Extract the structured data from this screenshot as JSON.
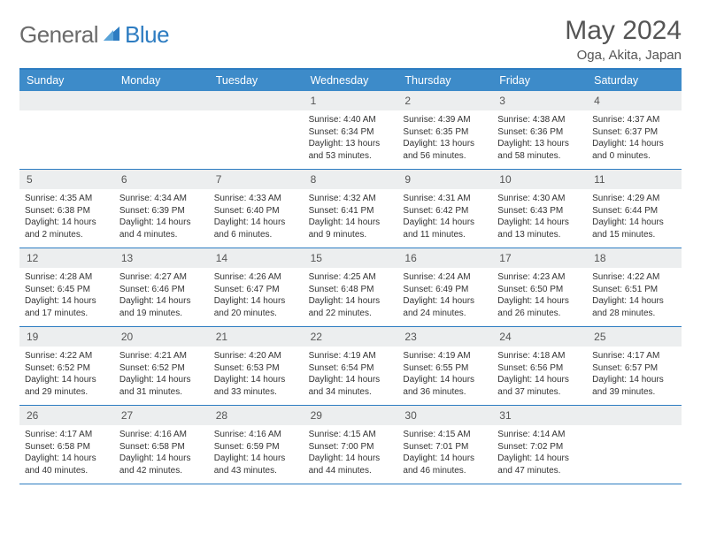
{
  "logo": {
    "part1": "General",
    "part2": "Blue"
  },
  "title": "May 2024",
  "location": "Oga, Akita, Japan",
  "colors": {
    "header_bg": "#3d8bc9",
    "border": "#2d7cc1",
    "daynum_bg": "#eceeef",
    "text": "#333333"
  },
  "day_names": [
    "Sunday",
    "Monday",
    "Tuesday",
    "Wednesday",
    "Thursday",
    "Friday",
    "Saturday"
  ],
  "weeks": [
    [
      null,
      null,
      null,
      {
        "n": "1",
        "sr": "Sunrise: 4:40 AM",
        "ss": "Sunset: 6:34 PM",
        "dl": "Daylight: 13 hours and 53 minutes."
      },
      {
        "n": "2",
        "sr": "Sunrise: 4:39 AM",
        "ss": "Sunset: 6:35 PM",
        "dl": "Daylight: 13 hours and 56 minutes."
      },
      {
        "n": "3",
        "sr": "Sunrise: 4:38 AM",
        "ss": "Sunset: 6:36 PM",
        "dl": "Daylight: 13 hours and 58 minutes."
      },
      {
        "n": "4",
        "sr": "Sunrise: 4:37 AM",
        "ss": "Sunset: 6:37 PM",
        "dl": "Daylight: 14 hours and 0 minutes."
      }
    ],
    [
      {
        "n": "5",
        "sr": "Sunrise: 4:35 AM",
        "ss": "Sunset: 6:38 PM",
        "dl": "Daylight: 14 hours and 2 minutes."
      },
      {
        "n": "6",
        "sr": "Sunrise: 4:34 AM",
        "ss": "Sunset: 6:39 PM",
        "dl": "Daylight: 14 hours and 4 minutes."
      },
      {
        "n": "7",
        "sr": "Sunrise: 4:33 AM",
        "ss": "Sunset: 6:40 PM",
        "dl": "Daylight: 14 hours and 6 minutes."
      },
      {
        "n": "8",
        "sr": "Sunrise: 4:32 AM",
        "ss": "Sunset: 6:41 PM",
        "dl": "Daylight: 14 hours and 9 minutes."
      },
      {
        "n": "9",
        "sr": "Sunrise: 4:31 AM",
        "ss": "Sunset: 6:42 PM",
        "dl": "Daylight: 14 hours and 11 minutes."
      },
      {
        "n": "10",
        "sr": "Sunrise: 4:30 AM",
        "ss": "Sunset: 6:43 PM",
        "dl": "Daylight: 14 hours and 13 minutes."
      },
      {
        "n": "11",
        "sr": "Sunrise: 4:29 AM",
        "ss": "Sunset: 6:44 PM",
        "dl": "Daylight: 14 hours and 15 minutes."
      }
    ],
    [
      {
        "n": "12",
        "sr": "Sunrise: 4:28 AM",
        "ss": "Sunset: 6:45 PM",
        "dl": "Daylight: 14 hours and 17 minutes."
      },
      {
        "n": "13",
        "sr": "Sunrise: 4:27 AM",
        "ss": "Sunset: 6:46 PM",
        "dl": "Daylight: 14 hours and 19 minutes."
      },
      {
        "n": "14",
        "sr": "Sunrise: 4:26 AM",
        "ss": "Sunset: 6:47 PM",
        "dl": "Daylight: 14 hours and 20 minutes."
      },
      {
        "n": "15",
        "sr": "Sunrise: 4:25 AM",
        "ss": "Sunset: 6:48 PM",
        "dl": "Daylight: 14 hours and 22 minutes."
      },
      {
        "n": "16",
        "sr": "Sunrise: 4:24 AM",
        "ss": "Sunset: 6:49 PM",
        "dl": "Daylight: 14 hours and 24 minutes."
      },
      {
        "n": "17",
        "sr": "Sunrise: 4:23 AM",
        "ss": "Sunset: 6:50 PM",
        "dl": "Daylight: 14 hours and 26 minutes."
      },
      {
        "n": "18",
        "sr": "Sunrise: 4:22 AM",
        "ss": "Sunset: 6:51 PM",
        "dl": "Daylight: 14 hours and 28 minutes."
      }
    ],
    [
      {
        "n": "19",
        "sr": "Sunrise: 4:22 AM",
        "ss": "Sunset: 6:52 PM",
        "dl": "Daylight: 14 hours and 29 minutes."
      },
      {
        "n": "20",
        "sr": "Sunrise: 4:21 AM",
        "ss": "Sunset: 6:52 PM",
        "dl": "Daylight: 14 hours and 31 minutes."
      },
      {
        "n": "21",
        "sr": "Sunrise: 4:20 AM",
        "ss": "Sunset: 6:53 PM",
        "dl": "Daylight: 14 hours and 33 minutes."
      },
      {
        "n": "22",
        "sr": "Sunrise: 4:19 AM",
        "ss": "Sunset: 6:54 PM",
        "dl": "Daylight: 14 hours and 34 minutes."
      },
      {
        "n": "23",
        "sr": "Sunrise: 4:19 AM",
        "ss": "Sunset: 6:55 PM",
        "dl": "Daylight: 14 hours and 36 minutes."
      },
      {
        "n": "24",
        "sr": "Sunrise: 4:18 AM",
        "ss": "Sunset: 6:56 PM",
        "dl": "Daylight: 14 hours and 37 minutes."
      },
      {
        "n": "25",
        "sr": "Sunrise: 4:17 AM",
        "ss": "Sunset: 6:57 PM",
        "dl": "Daylight: 14 hours and 39 minutes."
      }
    ],
    [
      {
        "n": "26",
        "sr": "Sunrise: 4:17 AM",
        "ss": "Sunset: 6:58 PM",
        "dl": "Daylight: 14 hours and 40 minutes."
      },
      {
        "n": "27",
        "sr": "Sunrise: 4:16 AM",
        "ss": "Sunset: 6:58 PM",
        "dl": "Daylight: 14 hours and 42 minutes."
      },
      {
        "n": "28",
        "sr": "Sunrise: 4:16 AM",
        "ss": "Sunset: 6:59 PM",
        "dl": "Daylight: 14 hours and 43 minutes."
      },
      {
        "n": "29",
        "sr": "Sunrise: 4:15 AM",
        "ss": "Sunset: 7:00 PM",
        "dl": "Daylight: 14 hours and 44 minutes."
      },
      {
        "n": "30",
        "sr": "Sunrise: 4:15 AM",
        "ss": "Sunset: 7:01 PM",
        "dl": "Daylight: 14 hours and 46 minutes."
      },
      {
        "n": "31",
        "sr": "Sunrise: 4:14 AM",
        "ss": "Sunset: 7:02 PM",
        "dl": "Daylight: 14 hours and 47 minutes."
      },
      null
    ]
  ]
}
